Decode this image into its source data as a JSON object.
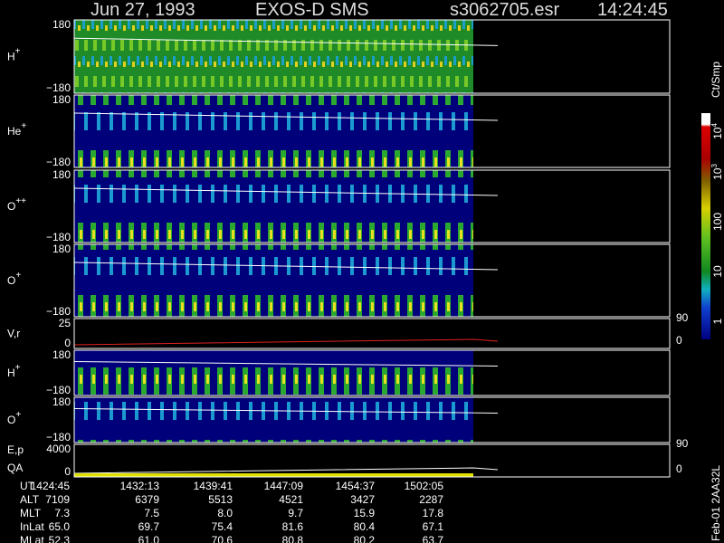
{
  "header": {
    "date": "Jun 27, 1993",
    "instrument": "EXOS-D SMS",
    "file": "s3062705.esr",
    "time": "14:24:45"
  },
  "panels": [
    {
      "label": "H",
      "sup": "+",
      "ticks": [
        "180",
        "−180"
      ]
    },
    {
      "label": "He",
      "sup": "+",
      "ticks": [
        "180",
        "−180"
      ]
    },
    {
      "label": "O",
      "sup": "++",
      "ticks": [
        "180",
        "−180"
      ]
    },
    {
      "label": "O",
      "sup": "+",
      "ticks": [
        "180",
        "−180"
      ]
    },
    {
      "label": "V,r",
      "ticks": [
        "25",
        "0"
      ],
      "right_ticks": [
        "90",
        "0"
      ]
    },
    {
      "label": "H",
      "sup": "+",
      "ticks": [
        "180",
        "−180"
      ]
    },
    {
      "label": "O",
      "sup": "+",
      "ticks": [
        "180",
        "−180"
      ]
    },
    {
      "label": "E,p",
      "label2": "QA",
      "ticks": [
        "4000",
        "0"
      ],
      "right_ticks": [
        "90",
        "0"
      ]
    }
  ],
  "colorbar": {
    "title": "Ct/Smp",
    "labels": [
      {
        "text": "10",
        "sup": "4"
      },
      {
        "text": "10",
        "sup": "3"
      },
      {
        "text": "100"
      },
      {
        "text": "10"
      },
      {
        "text": "1"
      }
    ]
  },
  "table": {
    "rows": [
      [
        "UT",
        "1424:45",
        "1432:13",
        "1439:41",
        "1447:09",
        "1454:37",
        "1502:05"
      ],
      [
        "ALT",
        "7109",
        "6379",
        "5513",
        "4521",
        "3427",
        "2287"
      ],
      [
        "MLT",
        "7.3",
        "7.5",
        "8.0",
        "9.7",
        "15.9",
        "17.8"
      ],
      [
        "InLat",
        "65.0",
        "69.7",
        "75.4",
        "81.6",
        "80.4",
        "67.1"
      ],
      [
        "MLat",
        "52.3",
        "61.0",
        "70.6",
        "80.8",
        "80.2",
        "63.7"
      ]
    ]
  },
  "footer": "Feb-01 2AA32L"
}
